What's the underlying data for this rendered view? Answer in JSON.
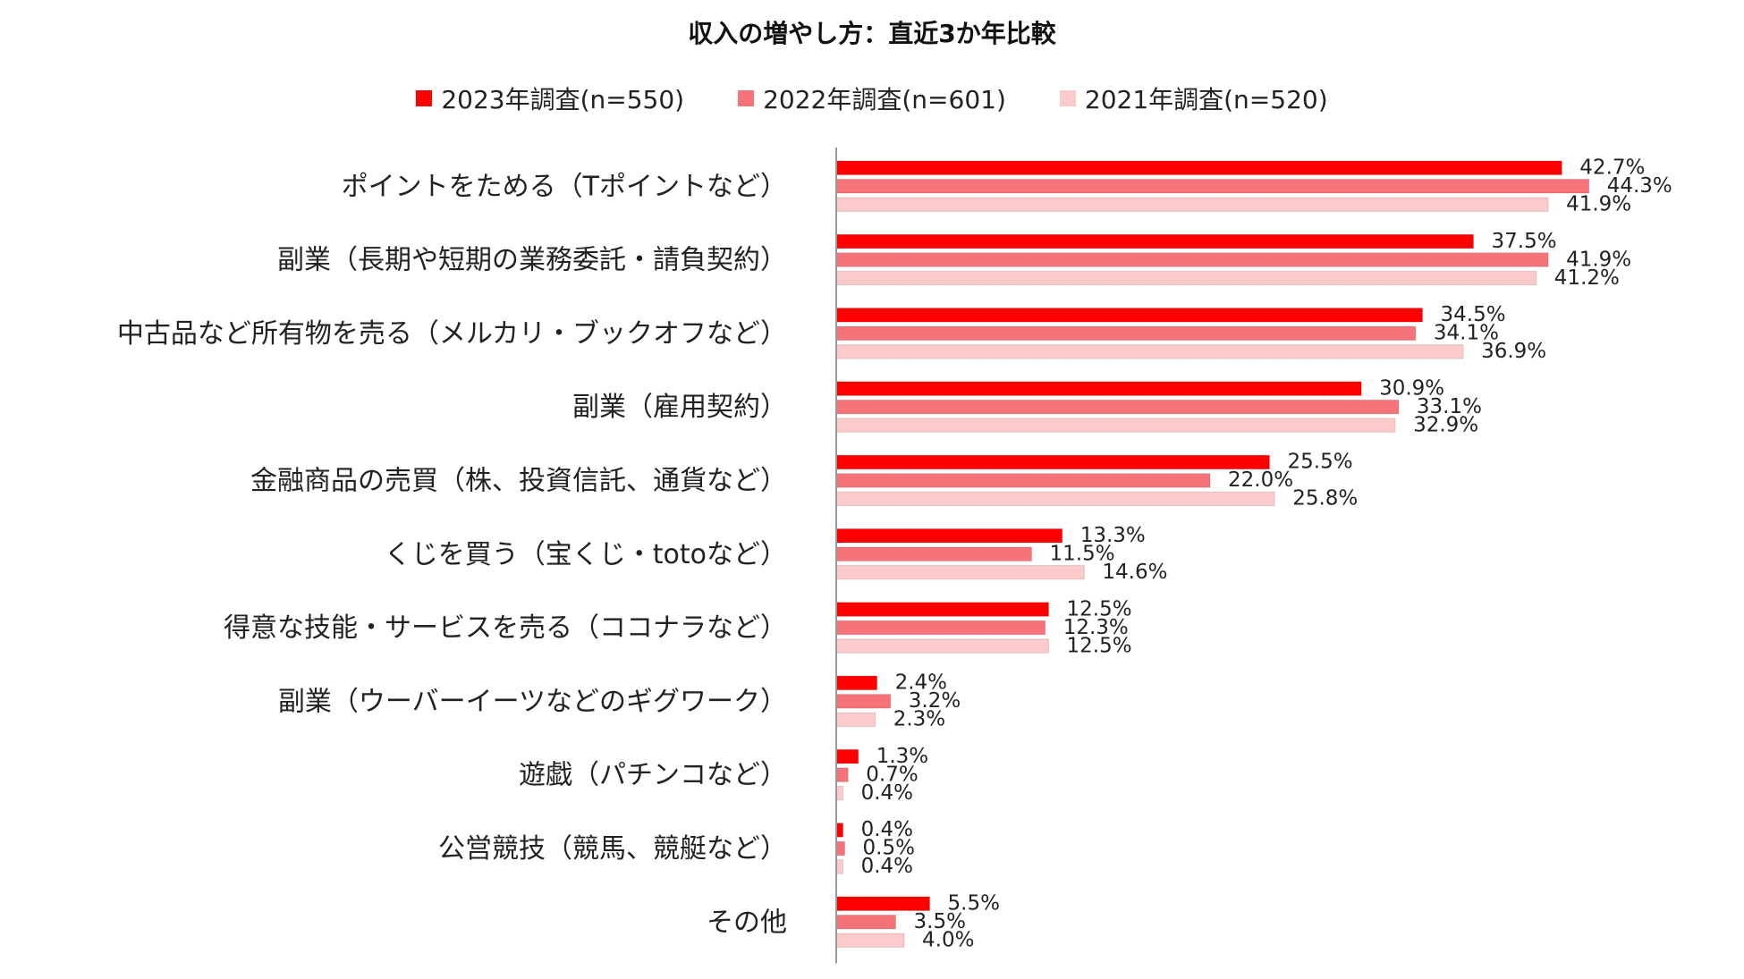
{
  "chart_data": {
    "type": "bar",
    "orientation": "horizontal",
    "title": "収入の増やし方：直近3か年比較",
    "categories": [
      "ポイントをためる（Tポイントなど）",
      "副業（長期や短期の業務委託・請負契約）",
      "中古品など所有物を売る（メルカリ・ブックオフなど）",
      "副業（雇用契約）",
      "金融商品の売買（株、投資信託、通貨など）",
      "くじを買う（宝くじ・totoなど）",
      "得意な技能・サービスを売る（ココナラなど）",
      "副業（ウーバーイーツなどのギグワーク）",
      "遊戯（パチンコなど）",
      "公営競技（競馬、競艇など）",
      "その他"
    ],
    "series": [
      {
        "name": "2023年調査(n=550)",
        "color": "#ff0000",
        "values": [
          42.7,
          37.5,
          34.5,
          30.9,
          25.5,
          13.3,
          12.5,
          2.4,
          1.3,
          0.4,
          5.5
        ],
        "labels": [
          "42.7%",
          "37.5%",
          "34.5%",
          "30.9%",
          "25.5%",
          "13.3%",
          "12.5%",
          "2.4%",
          "1.3%",
          "0.4%",
          "5.5%"
        ]
      },
      {
        "name": "2022年調査(n=601)",
        "color": "#f7737a",
        "values": [
          44.3,
          41.9,
          34.1,
          33.1,
          22.0,
          11.5,
          12.3,
          3.2,
          0.7,
          0.5,
          3.5
        ],
        "labels": [
          "44.3%",
          "41.9%",
          "34.1%",
          "33.1%",
          "22.0%",
          "11.5%",
          "12.3%",
          "3.2%",
          "0.7%",
          "0.5%",
          "3.5%"
        ]
      },
      {
        "name": "2021年調査(n=520)",
        "color": "#fbcaca",
        "values": [
          41.9,
          41.2,
          36.9,
          32.9,
          25.8,
          14.6,
          12.5,
          2.3,
          0.4,
          0.4,
          4.0
        ],
        "labels": [
          "41.9%",
          "41.2%",
          "36.9%",
          "32.9%",
          "25.8%",
          "14.6%",
          "12.5%",
          "2.3%",
          "0.4%",
          "0.4%",
          "4.0%"
        ]
      }
    ],
    "xlim": [
      0,
      50
    ],
    "unit": "%",
    "legend_position": "top"
  }
}
